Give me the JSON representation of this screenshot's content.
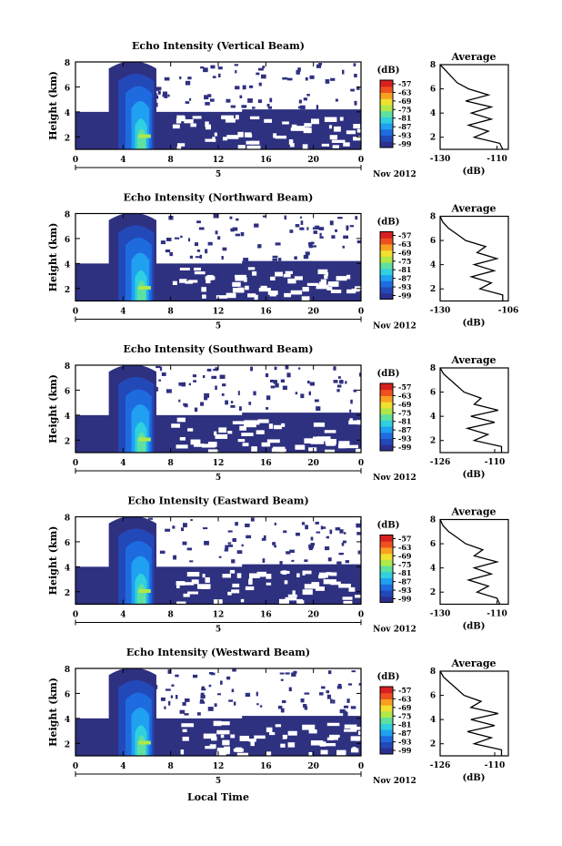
{
  "figure": {
    "x_axis_title": "Local Time",
    "date_label": "Nov 2012",
    "day_label": "5",
    "colorbar_unit": "(dB)",
    "colorbar_ticks": [
      "-57",
      "-63",
      "-69",
      "-75",
      "-81",
      "-87",
      "-93",
      "-99"
    ],
    "colormap": [
      "#2b2f8f",
      "#2348b8",
      "#1e6be0",
      "#1fa0f0",
      "#2fd0e0",
      "#5ee0a0",
      "#b0e84a",
      "#f0e030",
      "#f8a020",
      "#f05020",
      "#d82020"
    ],
    "avg_title": "Average",
    "avg_xlabel": "(dB)"
  },
  "chart_data": [
    {
      "type": "heatmap",
      "title": "Echo Intensity (Vertical Beam)",
      "ylabel": "Height (km)",
      "xlim": [
        0,
        24
      ],
      "ylim": [
        1,
        8
      ],
      "x_ticks": [
        "0",
        "4",
        "8",
        "12",
        "16",
        "20",
        "0"
      ],
      "y_ticks": [
        "2",
        "4",
        "6",
        "8"
      ],
      "avg_profile": {
        "xlim": [
          -130,
          -106
        ],
        "x_ticks": [
          "-130",
          "-110"
        ],
        "y_ticks": [
          "2",
          "4",
          "6",
          "8"
        ],
        "height_km": [
          1.0,
          1.5,
          2.0,
          2.5,
          3.0,
          3.5,
          4.0,
          4.5,
          5.0,
          5.5,
          6.0,
          6.5,
          7.0,
          7.5,
          8.0
        ],
        "db": [
          -108,
          -109,
          -118,
          -113,
          -120,
          -112,
          -119,
          -112,
          -121,
          -113,
          -120,
          -124,
          -126,
          -128,
          -130
        ]
      }
    },
    {
      "type": "heatmap",
      "title": "Echo Intensity (Northward Beam)",
      "ylabel": "Height (km)",
      "xlim": [
        0,
        24
      ],
      "ylim": [
        1,
        8
      ],
      "x_ticks": [
        "0",
        "4",
        "8",
        "12",
        "16",
        "20",
        "0"
      ],
      "y_ticks": [
        "2",
        "4",
        "6",
        "8"
      ],
      "avg_profile": {
        "xlim": [
          -130,
          -106
        ],
        "x_ticks": [
          "-130",
          "-106"
        ],
        "y_ticks": [
          "2",
          "4",
          "6",
          "8"
        ],
        "height_km": [
          1.0,
          1.5,
          2.0,
          2.5,
          3.0,
          3.5,
          4.0,
          4.5,
          5.0,
          5.5,
          6.0,
          6.5,
          7.0,
          7.5,
          8.0
        ],
        "db": [
          -108,
          -108,
          -116,
          -112,
          -119,
          -111,
          -118,
          -110,
          -117,
          -114,
          -121,
          -124,
          -127,
          -129,
          -130
        ]
      }
    },
    {
      "type": "heatmap",
      "title": "Echo Intensity (Southward Beam)",
      "ylabel": "Height (km)",
      "xlim": [
        0,
        24
      ],
      "ylim": [
        1,
        8
      ],
      "x_ticks": [
        "0",
        "4",
        "8",
        "12",
        "16",
        "20",
        "0"
      ],
      "y_ticks": [
        "2",
        "4",
        "6",
        "8"
      ],
      "avg_profile": {
        "xlim": [
          -126,
          -106
        ],
        "x_ticks": [
          "-126",
          "-110"
        ],
        "y_ticks": [
          "2",
          "4",
          "6",
          "8"
        ],
        "height_km": [
          1.0,
          1.5,
          2.0,
          2.5,
          3.0,
          3.5,
          4.0,
          4.5,
          5.0,
          5.5,
          6.0,
          6.5,
          7.0,
          7.5,
          8.0
        ],
        "db": [
          -108,
          -108,
          -116,
          -112,
          -118,
          -110,
          -117,
          -109,
          -116,
          -114,
          -119,
          -121,
          -123,
          -125,
          -126
        ]
      }
    },
    {
      "type": "heatmap",
      "title": "Echo Intensity (Eastward Beam)",
      "ylabel": "Height (km)",
      "xlim": [
        0,
        24
      ],
      "ylim": [
        1,
        8
      ],
      "x_ticks": [
        "0",
        "4",
        "8",
        "12",
        "16",
        "20",
        "0"
      ],
      "y_ticks": [
        "2",
        "4",
        "6",
        "8"
      ],
      "avg_profile": {
        "xlim": [
          -130,
          -106
        ],
        "x_ticks": [
          "-130",
          "-110"
        ],
        "y_ticks": [
          "2",
          "4",
          "6",
          "8"
        ],
        "height_km": [
          1.0,
          1.5,
          2.0,
          2.5,
          3.0,
          3.5,
          4.0,
          4.5,
          5.0,
          5.5,
          6.0,
          6.5,
          7.0,
          7.5,
          8.0
        ],
        "db": [
          -109,
          -110,
          -117,
          -113,
          -120,
          -112,
          -118,
          -110,
          -118,
          -115,
          -121,
          -124,
          -127,
          -129,
          -130
        ]
      }
    },
    {
      "type": "heatmap",
      "title": "Echo Intensity (Westward Beam)",
      "ylabel": "Height (km)",
      "xlim": [
        0,
        24
      ],
      "ylim": [
        1,
        8
      ],
      "x_ticks": [
        "0",
        "4",
        "8",
        "12",
        "16",
        "20",
        "0"
      ],
      "y_ticks": [
        "2",
        "4",
        "6",
        "8"
      ],
      "avg_profile": {
        "xlim": [
          -126,
          -106
        ],
        "x_ticks": [
          "-126",
          "-110"
        ],
        "y_ticks": [
          "2",
          "4",
          "6",
          "8"
        ],
        "height_km": [
          1.0,
          1.5,
          2.0,
          2.5,
          3.0,
          3.5,
          4.0,
          4.5,
          5.0,
          5.5,
          6.0,
          6.5,
          7.0,
          7.5,
          8.0
        ],
        "db": [
          -108,
          -108,
          -116,
          -111,
          -118,
          -110,
          -117,
          -109,
          -117,
          -114,
          -119,
          -121,
          -123,
          -125,
          -126
        ]
      }
    }
  ]
}
